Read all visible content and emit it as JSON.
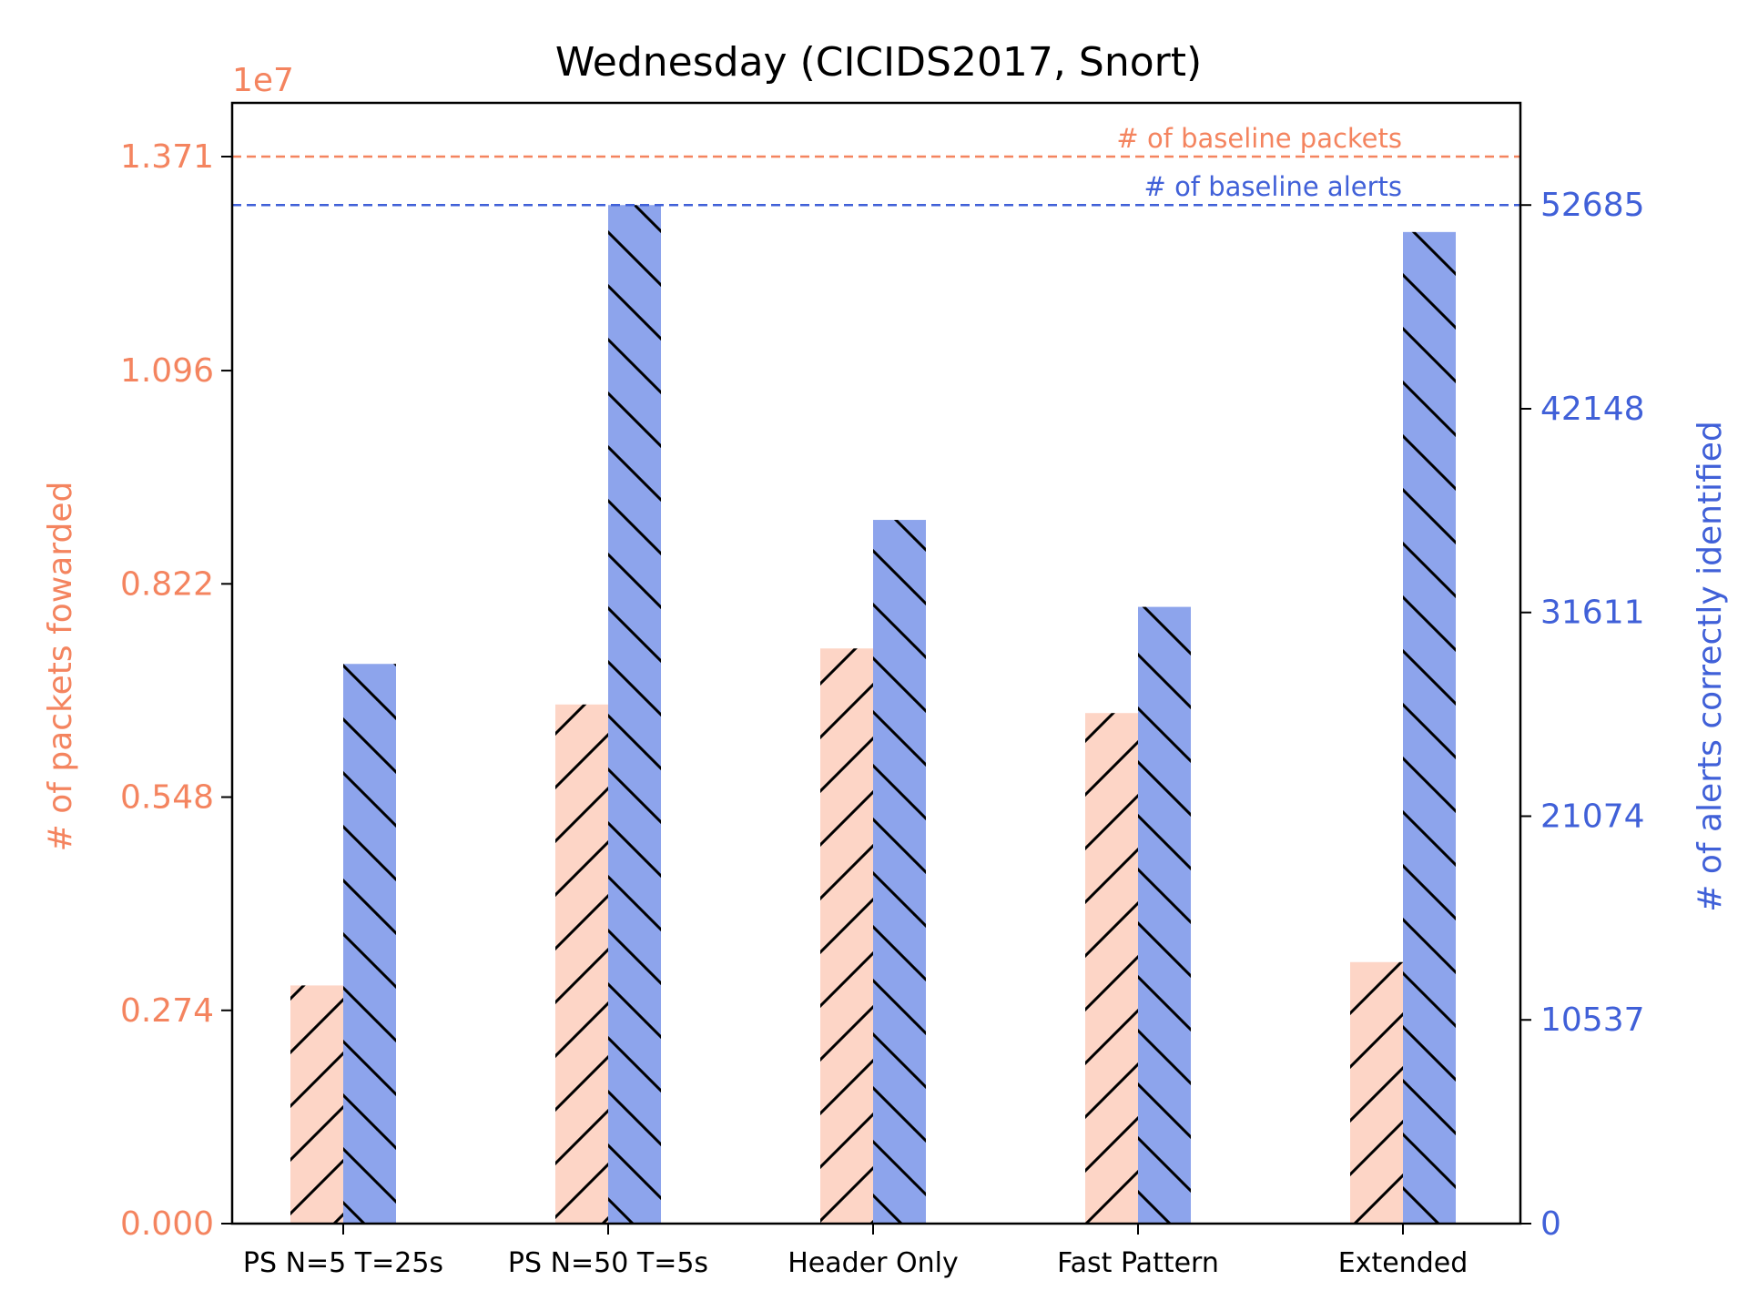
{
  "chart_data": {
    "type": "bar",
    "title": "Wednesday (CICIDS2017, Snort)",
    "categories": [
      "PS N=5 T=25s",
      "PS N=50 T=5s",
      "Header Only",
      "Fast Pattern",
      "Extended"
    ],
    "left_axis": {
      "label": "# of packets fowarded",
      "offset_text": "1e7",
      "ticks": [
        "0.000",
        "0.274",
        "0.548",
        "0.822",
        "1.096",
        "1.371"
      ],
      "tick_values": [
        0,
        0.274,
        0.548,
        0.822,
        1.096,
        1.371
      ],
      "ylim": [
        0,
        1.44
      ],
      "color": "#f4845f"
    },
    "right_axis": {
      "label": "# of alerts correctly identified",
      "ticks": [
        "0",
        "10537",
        "21074",
        "31611",
        "42148",
        "52685"
      ],
      "tick_values": [
        0,
        10537,
        21074,
        31611,
        42148,
        52685
      ],
      "ylim": [
        0,
        57970
      ],
      "color": "#4060d8"
    },
    "series": [
      {
        "name": "# of packets fowarded",
        "axis": "left",
        "color": "#fdd5c6",
        "hatch": "/",
        "values": [
          0.306,
          0.667,
          0.739,
          0.656,
          0.336
        ]
      },
      {
        "name": "# of alerts correctly identified",
        "axis": "right",
        "color": "#8da4ec",
        "hatch": "\\",
        "values": [
          28950,
          52685,
          36400,
          31900,
          51290
        ]
      }
    ],
    "reference_lines": [
      {
        "label": "# of baseline packets",
        "axis": "left",
        "value": 1.371,
        "color": "#f4845f"
      },
      {
        "label": "# of baseline alerts",
        "axis": "right",
        "value": 52685,
        "color": "#4060d8"
      }
    ]
  }
}
